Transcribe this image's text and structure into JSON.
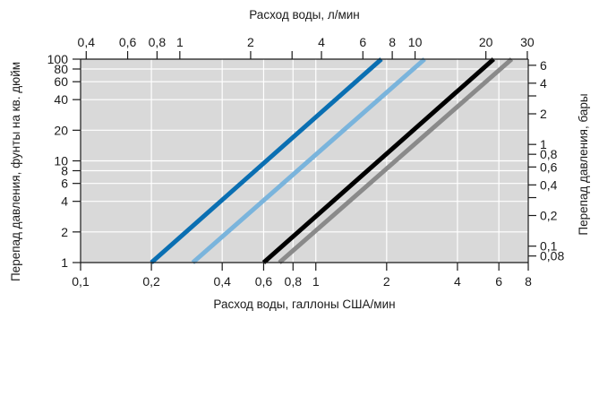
{
  "chart_data": {
    "type": "line",
    "x_scale": "log",
    "y_scale": "log",
    "grid": true,
    "xlim": [
      0.1,
      8
    ],
    "ylim": [
      1,
      100
    ],
    "xlabel_bottom": "Расход воды, галлоны США/мин",
    "xlabel_top": "Расход воды, л/мин",
    "ylabel_left": "Перепад давления, фунты на кв. дюйм",
    "ylabel_right": "Перепад давления, бары",
    "x_ticks_bottom": [
      {
        "v": 0.1,
        "label": "0,1"
      },
      {
        "v": 0.2,
        "label": "0,2"
      },
      {
        "v": 0.4,
        "label": "0,4"
      },
      {
        "v": 0.6,
        "label": "0,6"
      },
      {
        "v": 0.8,
        "label": "0,8"
      },
      {
        "v": 1,
        "label": "1"
      },
      {
        "v": 2,
        "label": "2"
      },
      {
        "v": 4,
        "label": "4"
      },
      {
        "v": 6,
        "label": "6"
      },
      {
        "v": 8,
        "label": "8"
      }
    ],
    "x_ticks_top": [
      {
        "v": 0.4,
        "label": "0,4"
      },
      {
        "v": 0.6,
        "label": "0,6"
      },
      {
        "v": 0.8,
        "label": "0,8"
      },
      {
        "v": 1,
        "label": "1"
      },
      {
        "v": 2,
        "label": "2"
      },
      {
        "v": 3,
        "label": ""
      },
      {
        "v": 4,
        "label": "4"
      },
      {
        "v": 6,
        "label": "6"
      },
      {
        "v": 8,
        "label": "8"
      },
      {
        "v": 10,
        "label": "10"
      },
      {
        "v": 20,
        "label": "20"
      },
      {
        "v": 30,
        "label": "30"
      }
    ],
    "y_ticks_left": [
      {
        "v": 1,
        "label": "1"
      },
      {
        "v": 2,
        "label": "2"
      },
      {
        "v": 4,
        "label": "4"
      },
      {
        "v": 6,
        "label": "6"
      },
      {
        "v": 8,
        "label": "8"
      },
      {
        "v": 10,
        "label": "10"
      },
      {
        "v": 20,
        "label": "20"
      },
      {
        "v": 40,
        "label": "40"
      },
      {
        "v": 60,
        "label": "60"
      },
      {
        "v": 80,
        "label": "80"
      },
      {
        "v": 100,
        "label": "100"
      }
    ],
    "y_ticks_right": [
      {
        "v": 0.08,
        "label": "0,08"
      },
      {
        "v": 0.1,
        "label": "0,1"
      },
      {
        "v": 0.2,
        "label": "0,2"
      },
      {
        "v": 0.3,
        "label": ""
      },
      {
        "v": 0.4,
        "label": "0,4"
      },
      {
        "v": 0.6,
        "label": "0,6"
      },
      {
        "v": 0.8,
        "label": "0,8"
      },
      {
        "v": 1,
        "label": "1"
      },
      {
        "v": 2,
        "label": "2"
      },
      {
        "v": 3,
        "label": ""
      },
      {
        "v": 4,
        "label": "4"
      },
      {
        "v": 6,
        "label": "6"
      }
    ],
    "series": [
      {
        "color": "#0a6fb2",
        "x": [
          0.2,
          1.9
        ],
        "y": [
          1,
          100
        ]
      },
      {
        "color": "#7ab4dc",
        "x": [
          0.3,
          2.9
        ],
        "y": [
          1,
          100
        ]
      },
      {
        "color": "#000000",
        "x": [
          0.6,
          5.7
        ],
        "y": [
          1,
          100
        ]
      },
      {
        "color": "#8a8a8a",
        "x": [
          0.7,
          6.8
        ],
        "y": [
          1,
          100
        ]
      }
    ],
    "colors": {
      "plot_background": "#d9d9d9",
      "grid": "#ffffff",
      "axis": "#1a1a1a"
    }
  }
}
